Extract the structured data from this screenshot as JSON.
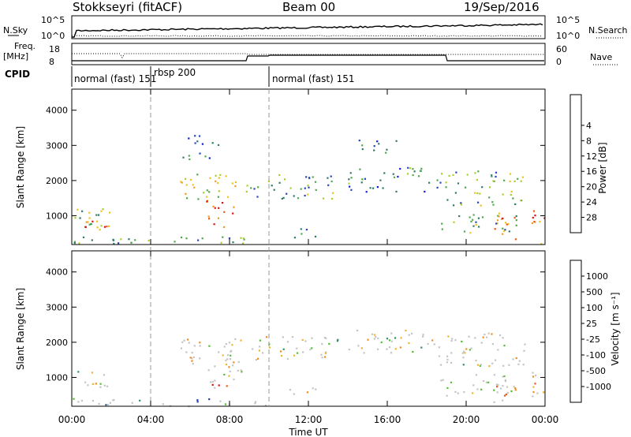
{
  "header": {
    "station": "Stokkseyri (fitACF)",
    "beam": "Beam 00",
    "date": "19/Sep/2016"
  },
  "top_panels": {
    "nsky": {
      "label": "N.Sky",
      "tick_top": "10^5",
      "tick_bottom": "10^0",
      "right_label": "N.Search",
      "right_tick_top": "10^5",
      "right_tick_bottom": "10^0"
    },
    "freq": {
      "label_line1": "Freq.",
      "label_line2": "[MHz]",
      "tick_top": "18",
      "tick_bottom": "8",
      "right_label": "Nave",
      "right_tick_top": "60",
      "right_tick_bottom": "0"
    },
    "cpid": {
      "label": "CPID",
      "segments": [
        {
          "label": "normal (fast) 151",
          "start_hour": 0
        },
        {
          "label": "rbsp 200",
          "start_hour": 4.0
        },
        {
          "label": "normal (fast) 151",
          "start_hour": 10.0
        }
      ]
    }
  },
  "axes": {
    "ylabel": "Slant Range [km]",
    "xlabel": "Time UT",
    "x_ticks": [
      "00:00",
      "04:00",
      "08:00",
      "12:00",
      "16:00",
      "20:00",
      "00:00"
    ],
    "y_ticks": [
      "1000",
      "2000",
      "3000",
      "4000"
    ]
  },
  "power_colorbar": {
    "label": "Power [dB]",
    "ticks": [
      "4",
      "8",
      "12",
      "16",
      "20",
      "24",
      "28"
    ],
    "colors": [
      "#0a1de0",
      "#2446b8",
      "#2f7a6b",
      "#4fa84a",
      "#a8cf2a",
      "#f0c21a",
      "#f49a1e",
      "#ee5a14",
      "#e01010"
    ]
  },
  "velocity_colorbar": {
    "label": "Velocity [m s⁻¹]",
    "ticks": [
      "1000",
      "500",
      "100",
      "25",
      "-25",
      "-100",
      "-500",
      "-1000"
    ],
    "colors": [
      "#1c3fb0",
      "#2a6aa0",
      "#2e8f63",
      "#4fbf2e",
      "#c4c4c4",
      "#f2b22a",
      "#f28a1c",
      "#ee5a12",
      "#e01212"
    ]
  },
  "chart_data": [
    {
      "type": "heatmap",
      "title": "Power",
      "xlabel": "Time UT",
      "ylabel": "Slant Range [km]",
      "xlim": [
        0,
        24
      ],
      "ylim": [
        180,
        4600
      ],
      "colorbar": "Power [dB]",
      "colorbar_range": [
        0,
        30
      ],
      "regions": [
        {
          "t0": 0.0,
          "t1": 2.0,
          "r0": 200,
          "r1": 1250,
          "level": 0.45
        },
        {
          "t0": 0.6,
          "t1": 1.9,
          "r0": 700,
          "r1": 1100,
          "level": 0.75
        },
        {
          "t0": 0.0,
          "t1": 10.0,
          "r0": 200,
          "r1": 420,
          "level": 0.35
        },
        {
          "t0": 5.4,
          "t1": 8.6,
          "r0": 1400,
          "r1": 2200,
          "level": 0.55
        },
        {
          "t0": 6.8,
          "t1": 8.2,
          "r0": 650,
          "r1": 1600,
          "level": 0.8
        },
        {
          "t0": 5.6,
          "t1": 7.4,
          "r0": 2600,
          "r1": 3300,
          "level": 0.2
        },
        {
          "t0": 8.8,
          "t1": 13.5,
          "r0": 1500,
          "r1": 2200,
          "level": 0.35
        },
        {
          "t0": 11.0,
          "t1": 12.4,
          "r0": 400,
          "r1": 750,
          "level": 0.4
        },
        {
          "t0": 14.0,
          "t1": 18.5,
          "r0": 1700,
          "r1": 2400,
          "level": 0.3
        },
        {
          "t0": 14.5,
          "t1": 16.8,
          "r0": 2800,
          "r1": 3200,
          "level": 0.25
        },
        {
          "t0": 18.5,
          "t1": 23.0,
          "r0": 1300,
          "r1": 2300,
          "level": 0.4
        },
        {
          "t0": 18.6,
          "t1": 22.6,
          "r0": 500,
          "r1": 1100,
          "level": 0.4
        },
        {
          "t0": 21.3,
          "t1": 22.5,
          "r0": 300,
          "r1": 1100,
          "level": 0.7
        },
        {
          "t0": 23.3,
          "t1": 24.0,
          "r0": 200,
          "r1": 1300,
          "level": 0.8
        }
      ]
    },
    {
      "type": "heatmap",
      "title": "Velocity",
      "xlabel": "Time UT",
      "ylabel": "Slant Range [km]",
      "xlim": [
        0,
        24
      ],
      "ylim": [
        180,
        4600
      ],
      "colorbar": "Velocity [m s⁻¹]",
      "colorbar_range": [
        -1000,
        1000
      ],
      "regions": [
        {
          "t0": 0.0,
          "t1": 2.0,
          "r0": 700,
          "r1": 1200,
          "level": 0.5
        },
        {
          "t0": 0.0,
          "t1": 10.0,
          "r0": 200,
          "r1": 420,
          "level": 0.25
        },
        {
          "t0": 5.4,
          "t1": 8.6,
          "r0": 1400,
          "r1": 2200,
          "level": 0.5
        },
        {
          "t0": 6.8,
          "t1": 8.2,
          "r0": 650,
          "r1": 1600,
          "level": 0.85
        },
        {
          "t0": 7.6,
          "t1": 8.6,
          "r0": 900,
          "r1": 1800,
          "level": 0.3
        },
        {
          "t0": 8.8,
          "t1": 13.5,
          "r0": 1500,
          "r1": 2200,
          "level": 0.5
        },
        {
          "t0": 11.0,
          "t1": 12.4,
          "r0": 400,
          "r1": 750,
          "level": 0.7
        },
        {
          "t0": 14.0,
          "t1": 18.5,
          "r0": 1700,
          "r1": 2400,
          "level": 0.5
        },
        {
          "t0": 18.5,
          "t1": 23.0,
          "r0": 1300,
          "r1": 2300,
          "level": 0.5
        },
        {
          "t0": 18.6,
          "t1": 22.6,
          "r0": 500,
          "r1": 1100,
          "level": 0.5
        },
        {
          "t0": 21.3,
          "t1": 22.5,
          "r0": 300,
          "r1": 1100,
          "level": 0.8
        },
        {
          "t0": 23.3,
          "t1": 24.0,
          "r0": 200,
          "r1": 1300,
          "level": 0.8
        }
      ]
    }
  ]
}
